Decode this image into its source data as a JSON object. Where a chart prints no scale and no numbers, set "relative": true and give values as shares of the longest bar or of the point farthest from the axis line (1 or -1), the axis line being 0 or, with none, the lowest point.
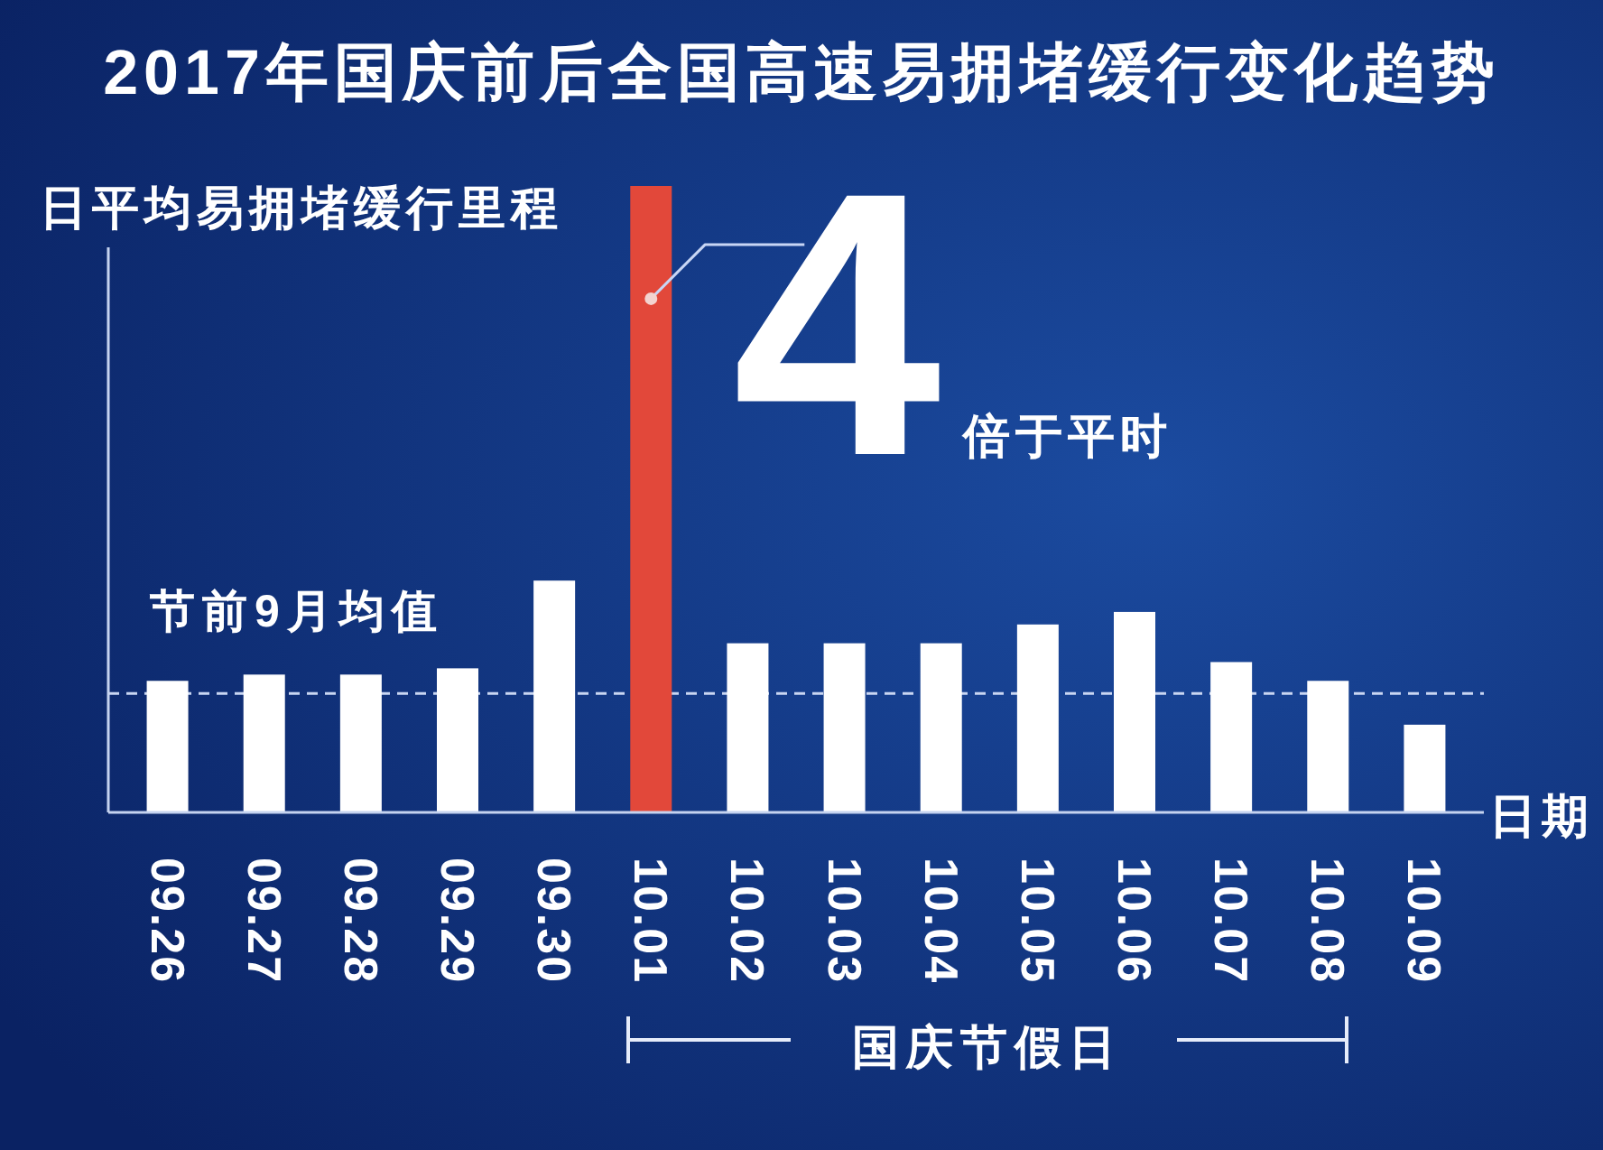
{
  "chart_data": {
    "type": "bar",
    "title": "2017年国庆前后全国高速易拥堵缓行变化趋势",
    "ylabel": "日平均易拥堵缓行里程",
    "xlabel": "日期",
    "relative": true,
    "categories": [
      "09.26",
      "09.27",
      "09.28",
      "09.29",
      "09.30",
      "10.01",
      "10.02",
      "10.03",
      "10.04",
      "10.05",
      "10.06",
      "10.07",
      "10.08",
      "10.09"
    ],
    "values": [
      0.21,
      0.22,
      0.22,
      0.23,
      0.37,
      1,
      0.27,
      0.27,
      0.27,
      0.3,
      0.32,
      0.24,
      0.21,
      0.14
    ],
    "colors": [
      "#ffffff",
      "#ffffff",
      "#ffffff",
      "#ffffff",
      "#ffffff",
      "#e2483a",
      "#ffffff",
      "#ffffff",
      "#ffffff",
      "#ffffff",
      "#ffffff",
      "#ffffff",
      "#ffffff",
      "#ffffff"
    ],
    "ref_lines": [
      {
        "axis": "y",
        "value": 0.19,
        "label": "节前9月均值",
        "color": "#c9d6f2",
        "line_style": "dashed"
      }
    ],
    "annotations": [
      {
        "text": "4",
        "x": "10.01",
        "y": 0.82
      },
      "倍于平时",
      "国庆节假日"
    ]
  }
}
